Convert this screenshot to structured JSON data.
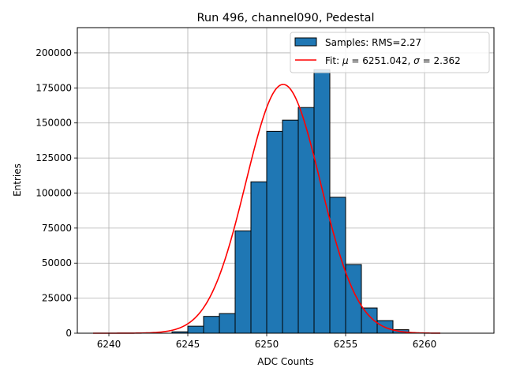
{
  "chart_data": {
    "type": "bar",
    "title": "Run 496, channel090, Pedestal",
    "xlabel": "ADC Counts",
    "ylabel": "Entries",
    "xlim": [
      6238,
      6264.4
    ],
    "ylim": [
      0,
      218000
    ],
    "xticks": [
      6240,
      6245,
      6250,
      6255,
      6260
    ],
    "yticks": [
      0,
      25000,
      50000,
      75000,
      100000,
      125000,
      150000,
      175000,
      200000
    ],
    "grid": true,
    "legend_position": "top-right",
    "histogram": {
      "name": "Samples: RMS=2.27",
      "bin_width": 1,
      "bin_left_edges": [
        6244,
        6245,
        6246,
        6247,
        6248,
        6249,
        6250,
        6251,
        6252,
        6253,
        6254,
        6255,
        6256,
        6257,
        6258
      ],
      "counts": [
        1000,
        5000,
        12000,
        14000,
        73000,
        108000,
        144000,
        152000,
        161000,
        188000,
        97000,
        49000,
        18000,
        9000,
        2500
      ],
      "fill_color": "#1f77b4",
      "edge_color": "#000000"
    },
    "fit": {
      "label": "Fit: ",
      "mu_symbol": "μ",
      "sigma_symbol": "σ",
      "mu_text": " = 6251.042, ",
      "sigma_text": " = 2.362",
      "mu": 6251.042,
      "sigma": 2.362,
      "amplitude": 177500,
      "x_range": [
        6239,
        6261
      ],
      "color": "#ff0000"
    }
  }
}
